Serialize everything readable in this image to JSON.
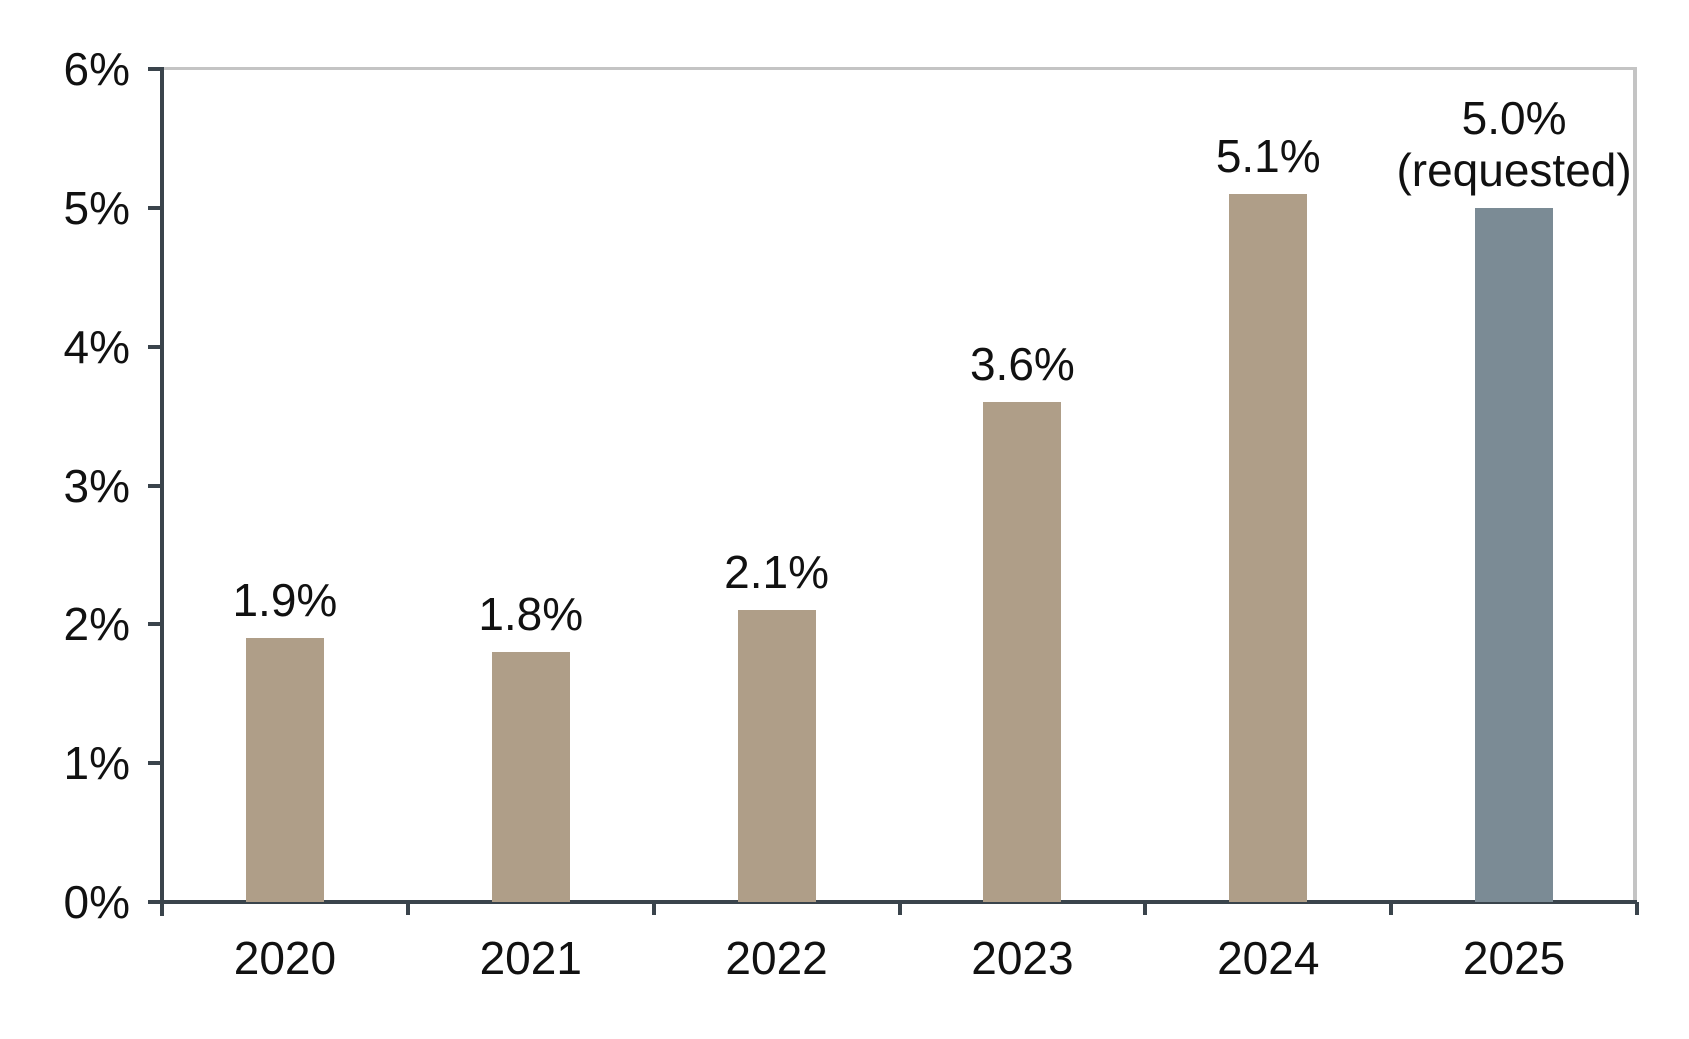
{
  "chart_data": {
    "type": "bar",
    "title": "",
    "xlabel": "",
    "ylabel": "",
    "categories": [
      "2020",
      "2021",
      "2022",
      "2023",
      "2024",
      "2025"
    ],
    "series": [
      {
        "name": "annual-percentage",
        "values": [
          1.9,
          1.8,
          2.1,
          3.6,
          5.1,
          5.0
        ]
      }
    ],
    "bar_labels": [
      [
        "1.9%"
      ],
      [
        "1.8%"
      ],
      [
        "2.1%"
      ],
      [
        "3.6%"
      ],
      [
        "5.1%"
      ],
      [
        "5.0%",
        "(requested)"
      ]
    ],
    "highlighted_category": "2025",
    "highlight_note": "(requested)",
    "y_ticks": [
      {
        "value": 0,
        "label": "0%"
      },
      {
        "value": 1,
        "label": "1%"
      },
      {
        "value": 2,
        "label": "2%"
      },
      {
        "value": 3,
        "label": "3%"
      },
      {
        "value": 4,
        "label": "4%"
      },
      {
        "value": 5,
        "label": "5%"
      },
      {
        "value": 6,
        "label": "6%"
      }
    ],
    "ylim": [
      0,
      6
    ],
    "grid": "top and right plot border only, no interior gridlines",
    "legend": "none",
    "colors": {
      "bar_default": "#AF9E88",
      "bar_highlight": "#7B8B95",
      "axis": "#3A444C",
      "plot_border": "#C4C4C4",
      "text": "#111111",
      "background": "#FFFFFF"
    },
    "bar_color_roles": [
      "default",
      "default",
      "default",
      "default",
      "default",
      "highlight"
    ]
  }
}
